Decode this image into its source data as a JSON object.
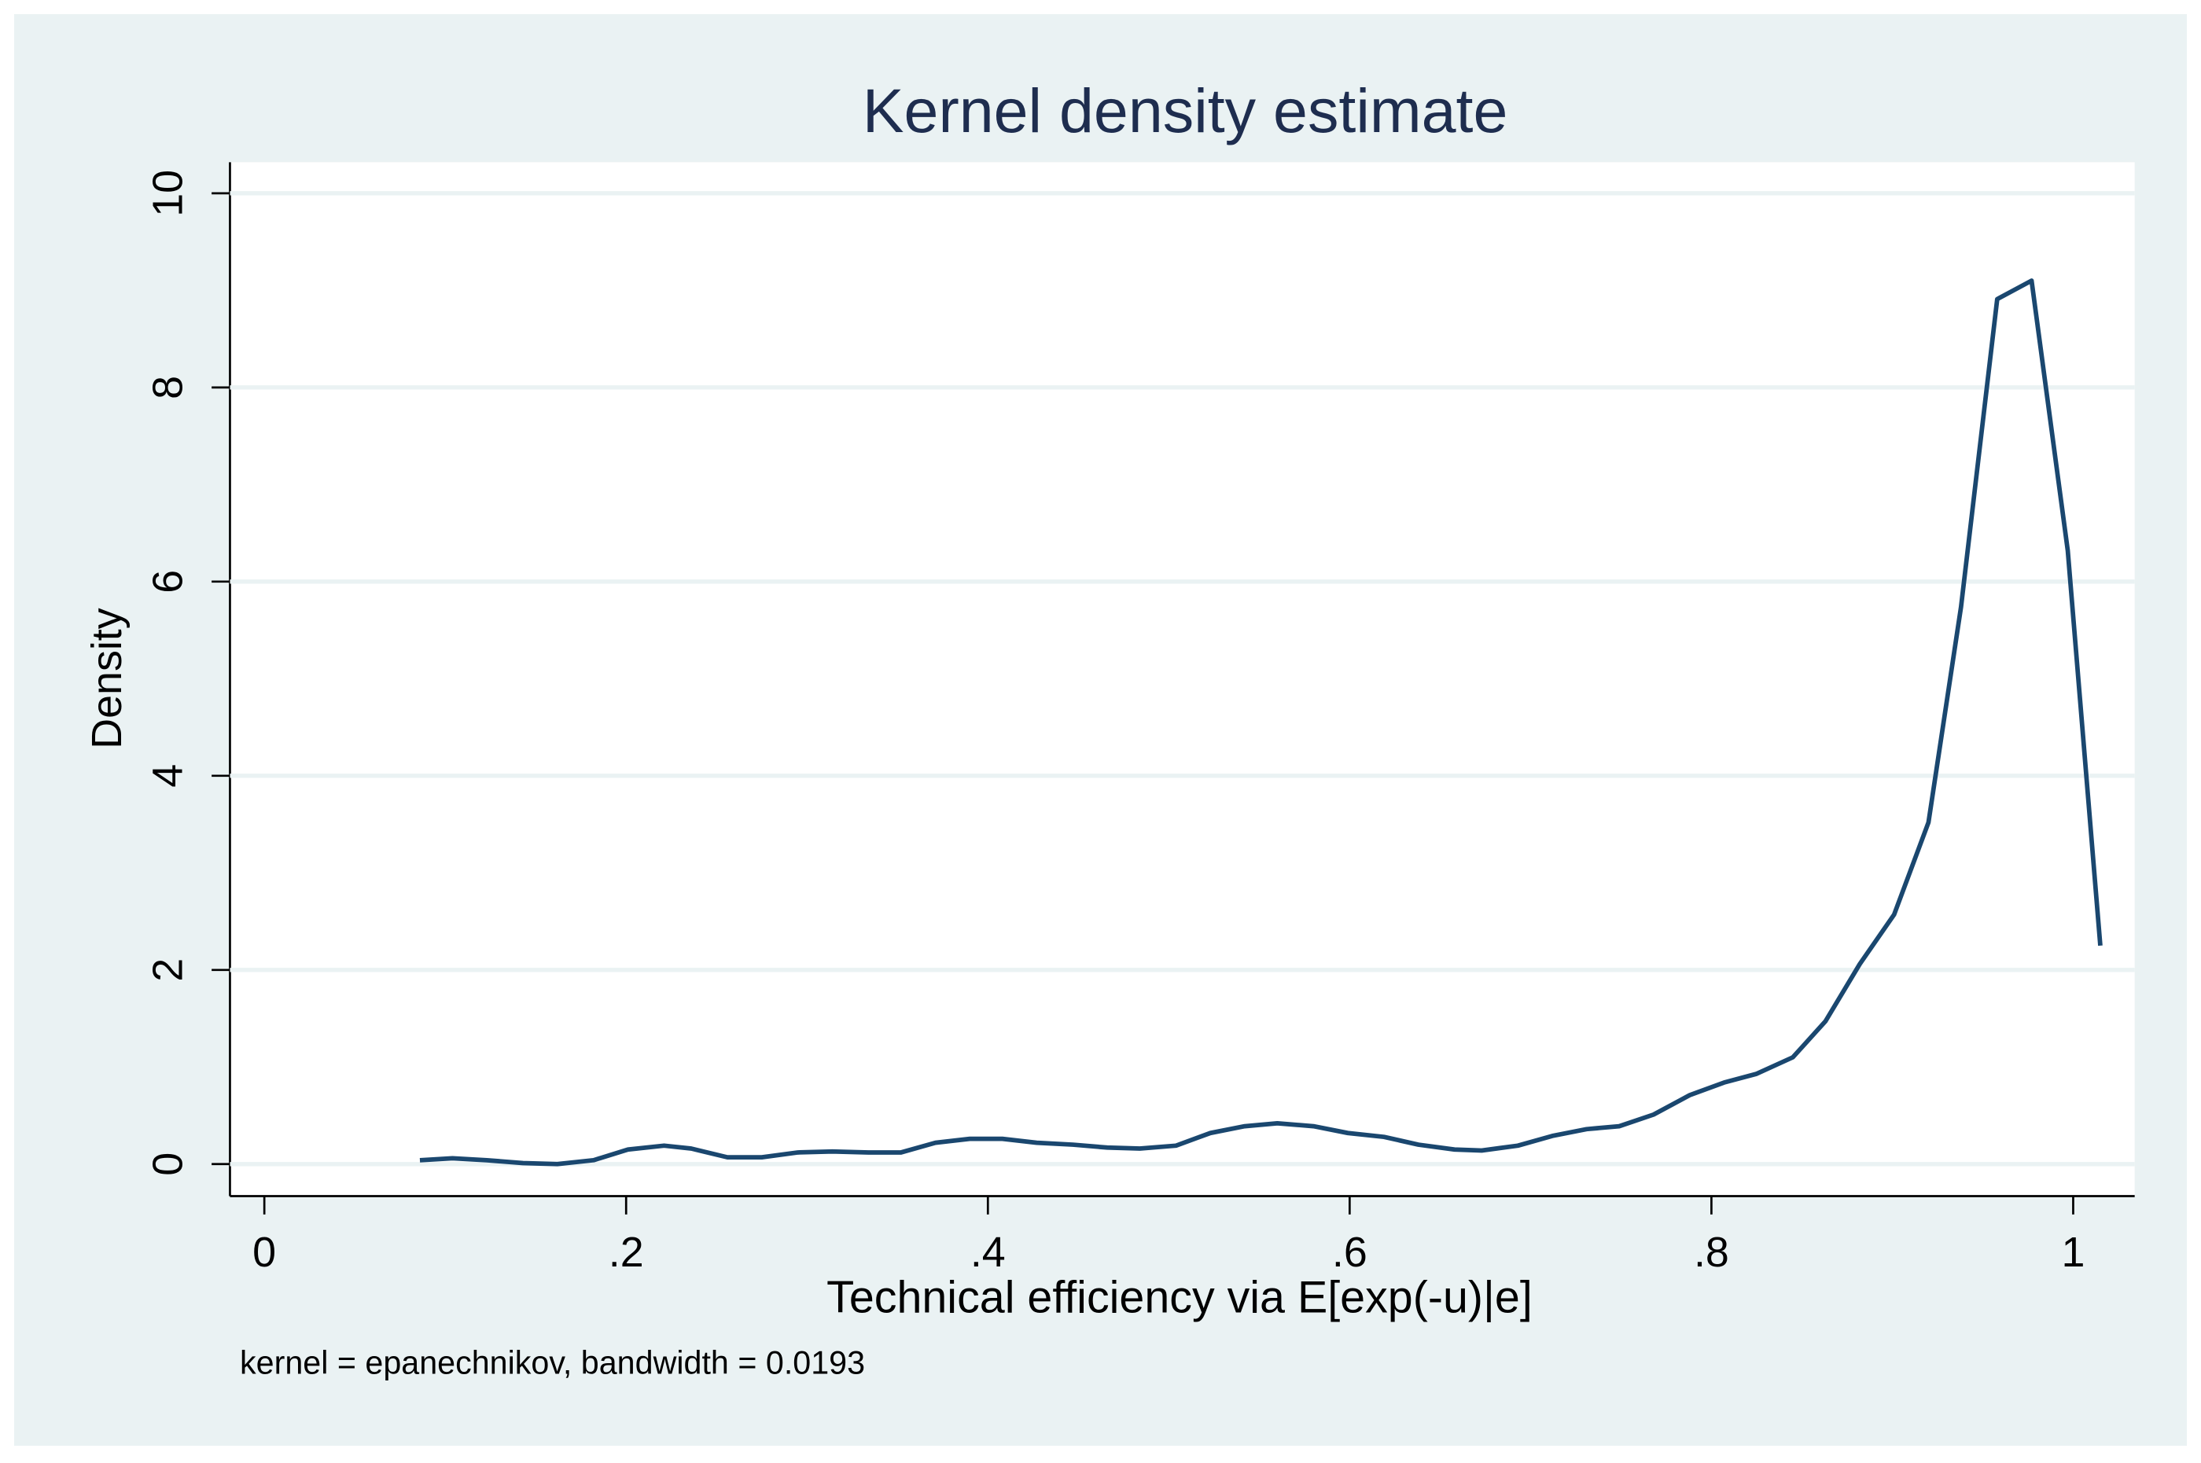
{
  "chart_data": {
    "type": "line",
    "title": "Kernel density estimate",
    "x_label": "Technical efficiency via E[exp(-u)|e]",
    "y_label": "Density",
    "note": "kernel = epanechnikov, bandwidth = 0.0193",
    "x": [
      0.086,
      0.104,
      0.123,
      0.143,
      0.162,
      0.182,
      0.201,
      0.221,
      0.236,
      0.256,
      0.275,
      0.295,
      0.314,
      0.334,
      0.352,
      0.371,
      0.39,
      0.408,
      0.427,
      0.447,
      0.466,
      0.484,
      0.504,
      0.523,
      0.542,
      0.56,
      0.58,
      0.599,
      0.619,
      0.638,
      0.658,
      0.673,
      0.693,
      0.712,
      0.731,
      0.749,
      0.768,
      0.788,
      0.807,
      0.825,
      0.845,
      0.863,
      0.882,
      0.901,
      0.92,
      0.938,
      0.958,
      0.977,
      0.997,
      1.015
    ],
    "values": [
      0.04,
      0.06,
      0.04,
      0.01,
      0.0,
      0.04,
      0.15,
      0.19,
      0.16,
      0.07,
      0.07,
      0.12,
      0.13,
      0.12,
      0.12,
      0.22,
      0.26,
      0.26,
      0.22,
      0.2,
      0.17,
      0.16,
      0.19,
      0.32,
      0.39,
      0.42,
      0.39,
      0.32,
      0.28,
      0.2,
      0.15,
      0.14,
      0.19,
      0.29,
      0.36,
      0.39,
      0.51,
      0.71,
      0.84,
      0.93,
      1.1,
      1.47,
      2.06,
      2.57,
      3.52,
      5.74,
      8.91,
      9.1,
      6.32,
      2.25
    ],
    "color": "#1a476f",
    "xlim": [
      -0.019,
      1.034
    ],
    "ylim": [
      -0.33,
      10.32
    ],
    "xticks": [
      0,
      {
        "value": 0.2,
        "label": ".2"
      },
      {
        "value": 0.4,
        "label": ".4"
      },
      {
        "value": 0.6,
        "label": ".6"
      },
      {
        "value": 0.8,
        "label": ".8"
      },
      1
    ],
    "yticks": [
      0,
      2,
      4,
      6,
      8,
      10
    ],
    "grid": true
  }
}
